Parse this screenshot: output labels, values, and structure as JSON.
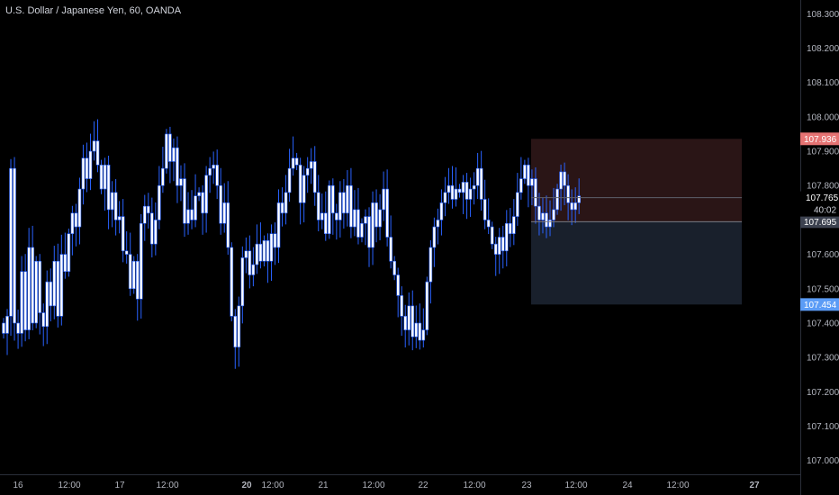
{
  "header": {
    "symbol_title": "U.S. Dollar / Japanese Yen, 60, OANDA"
  },
  "colors": {
    "background": "#000000",
    "candle_body": "#ffffff",
    "candle_wick": "#2962ff",
    "axis_text": "#b2b5be",
    "stop_zone": "#2a1516",
    "target_zone": "#19202c",
    "stop_badge": "#e57373",
    "target_badge": "#5b9cf6",
    "entry_badge": "#3d4250",
    "current_badge": "#000000"
  },
  "price_axis": {
    "labels": [
      "108.300",
      "108.200",
      "108.100",
      "108.000",
      "107.900",
      "107.800",
      "107.600",
      "107.500",
      "107.400",
      "107.300",
      "107.200",
      "107.100",
      "107.000"
    ]
  },
  "time_axis": {
    "labels": [
      "16",
      "12:00",
      "17",
      "12:00",
      "20",
      "12:00",
      "21",
      "12:00",
      "22",
      "12:00",
      "23",
      "12:00",
      "24",
      "12:00",
      "27"
    ]
  },
  "position_tool": {
    "stop_label": "107.936",
    "current_label": "107.765",
    "countdown_label": "40:02",
    "entry_label": "107.695",
    "target_label": "107.454"
  },
  "chart_data": {
    "type": "candlestick",
    "title": "U.S. Dollar / Japanese Yen, 60, OANDA",
    "ylim": [
      106.96,
      108.34
    ],
    "y_ticks": [
      107.0,
      107.1,
      107.2,
      107.3,
      107.4,
      107.5,
      107.6,
      107.8,
      107.9,
      108.0,
      108.1,
      108.2,
      108.3
    ],
    "x_ticks": [
      "16",
      "12:00",
      "17",
      "12:00",
      "20",
      "12:00",
      "21",
      "12:00",
      "22",
      "12:00",
      "23",
      "12:00",
      "24",
      "12:00",
      "27"
    ],
    "close_path": [
      107.37,
      107.42,
      107.85,
      107.4,
      107.37,
      107.55,
      107.38,
      107.62,
      107.4,
      107.58,
      107.43,
      107.39,
      107.52,
      107.45,
      107.58,
      107.42,
      107.6,
      107.55,
      107.66,
      107.72,
      107.68,
      107.79,
      107.88,
      107.82,
      107.9,
      107.93,
      107.86,
      107.79,
      107.86,
      107.73,
      107.78,
      107.7,
      107.71,
      107.61,
      107.6,
      107.5,
      107.58,
      107.47,
      107.69,
      107.74,
      107.72,
      107.63,
      107.7,
      107.8,
      107.85,
      107.95,
      107.87,
      107.91,
      107.8,
      107.82,
      107.69,
      107.73,
      107.7,
      107.77,
      107.78,
      107.72,
      107.83,
      107.85,
      107.86,
      107.8,
      107.69,
      107.75,
      107.62,
      107.42,
      107.33,
      107.45,
      107.59,
      107.61,
      107.54,
      107.57,
      107.63,
      107.58,
      107.64,
      107.58,
      107.66,
      107.62,
      107.75,
      107.72,
      107.78,
      107.85,
      107.88,
      107.86,
      107.75,
      107.83,
      107.85,
      107.87,
      107.78,
      107.7,
      107.72,
      107.66,
      107.8,
      107.72,
      107.7,
      107.78,
      107.72,
      107.8,
      107.68,
      107.73,
      107.65,
      107.69,
      107.71,
      107.62,
      107.75,
      107.68,
      107.73,
      107.79,
      107.65,
      107.58,
      107.54,
      107.48,
      107.42,
      107.38,
      107.45,
      107.36,
      107.4,
      107.35,
      107.38,
      107.52,
      107.62,
      107.68,
      107.7,
      107.75,
      107.78,
      107.8,
      107.76,
      107.79,
      107.78,
      107.81,
      107.76,
      107.79,
      107.8,
      107.85,
      107.76,
      107.7,
      107.68,
      107.63,
      107.6,
      107.65,
      107.61,
      107.69,
      107.66,
      107.71,
      107.78,
      107.82,
      107.86,
      107.8,
      107.82,
      107.74,
      107.7,
      107.72,
      107.68,
      107.7,
      107.73,
      107.79,
      107.84,
      107.8,
      107.75,
      107.73,
      107.75,
      107.77
    ]
  }
}
